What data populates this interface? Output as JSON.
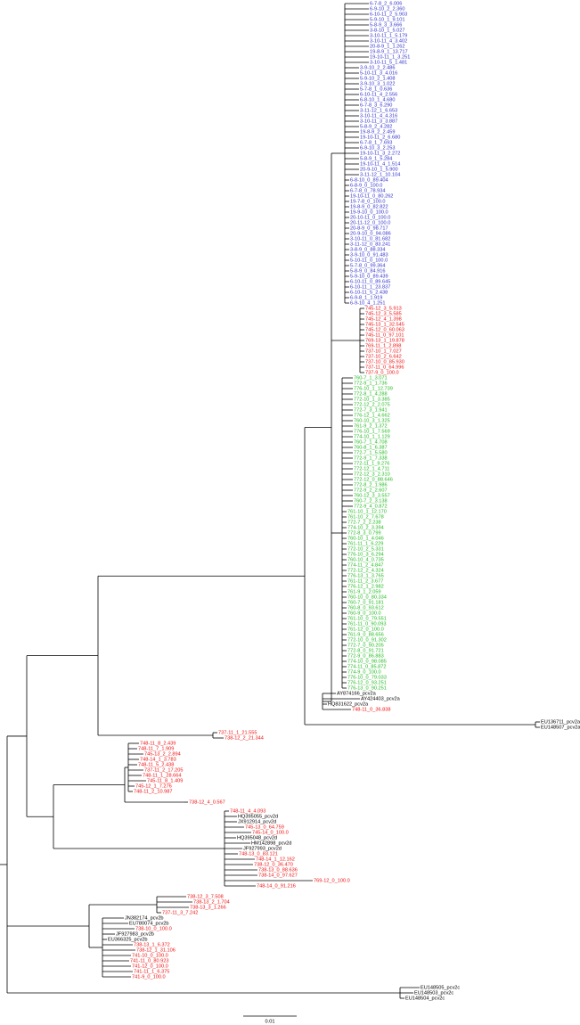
{
  "clades": [
    {
      "color": "#3333cc",
      "leaves": [
        "6-7-8_2_6.006",
        "6-9-10_2_2.360",
        "6-10-11_2_5.903",
        "5-9-10_1_9.101",
        "5-8-9_3_3.666",
        "3-8-10_1_5.027",
        "3-10-11_1_5.179",
        "3-10-11_4_3.402",
        "20-8-9_1_1.262",
        "19-8-9_1_13.717",
        "19-10-11_1_3.251",
        "3-10-11_5_1.481",
        "3-9-10_2_2.486",
        "5-10-11_3_4.016",
        "5-9-10_2_1.408",
        "3-9-10_3_1.022",
        "5-7-8_1_0.636",
        "6-10-11_4_2.556",
        "6-8-10_1_4.680",
        "6-7-8_3_6.290",
        "3-11-12_1_6.653",
        "3-10-11_4_4.316",
        "3-10-11_3_3.887",
        "5-8-9_2_4.282",
        "19-8-9_2_2.459",
        "19-10-11_2_6.680",
        "6-7-8_1_7.693",
        "6-9-10_3_2.253",
        "19-10-11_3_2.272",
        "5-8-9_1_5.284",
        "19-10-11_4_1.514",
        "20-9-10_1_5.900",
        "3-11-12_1_10.104",
        "6-8-10_0_89.404",
        "6-8-9_0_100.0",
        "6-7-8_0_78.934",
        "19-10-11_0_80.262",
        "19-7-8_0_100.0",
        "19-8-9_0_82.822",
        "19-9-10_0_100.0",
        "20-10-11_0_100.0",
        "20-11-12_0_100.0",
        "20-8-9_0_98.717",
        "20-9-10_0_94.086",
        "3-10-11_0_81.682",
        "3-11-12_0_83.241",
        "3-8-9_0_88.334",
        "3-9-10_0_91.483",
        "5-10-11_0_100.0",
        "5-7-8_0_99.364",
        "5-8-9_0_84.916",
        "5-9-10_0_89.439",
        "6-10-11_0_89.645",
        "6-10-11_1_23.837",
        "6-10-11_5_2.438",
        "6-9-8_1_1.919",
        "6-9-10_4_1.251"
      ]
    },
    {
      "color": "#ee1111",
      "leaves": [
        "745-12_3_5.913",
        "745-12_3_5.585",
        "745-12_4_1.398",
        "745-13_1_32.545",
        "745-12_0_60.063",
        "745-11_0_97.101",
        "769-13_1_19.878",
        "769-11_1_2.898",
        "737-10_1_7.027",
        "737-10_2_6.642",
        "737-10_0_85.930",
        "737-11_0_64.996",
        "737-9_0_100.0"
      ]
    },
    {
      "color": "#22bb22",
      "leaves": [
        "760-7_1_3.071",
        "772-9_1_1.736",
        "776-10_1_12.739",
        "772-8_1_4.288",
        "772-10_1_3.385",
        "772-12_2_2.075",
        "772-7_3_1.941",
        "776-12_1_4.662",
        "760-10_3_1.325",
        "761-9_2_1.372",
        "776-10_1_7.569",
        "774-10_1_1.129",
        "760-7_1_4.708",
        "760-8_1_6.387",
        "772-7_1_5.580",
        "772-9_1_7.338",
        "772-11_1_9.276",
        "772-12_1_4.711",
        "772-12_3_2.310",
        "772-12_0_88.646",
        "772-8_2_1.986",
        "772-9_2_2.607",
        "760-12_3_3.557",
        "760-7_2_3.138",
        "772-9_4_0.872",
        "761-10_1_12.170",
        "761-10_2_7.678",
        "772-7_2_2.238",
        "774-10_2_3.394",
        "772-8_3_0.799",
        "760-10_1_4.046",
        "761-11_1_6.229",
        "772-10_2_5.331",
        "776-10_3_6.294",
        "760-10_4_0.735",
        "774-11_2_4.847",
        "772-12_2_4.324",
        "776-13_1_3.765",
        "761-11_2_3.677",
        "776-12_1_2.982",
        "761-9_1_2.059",
        "760-10_0_80.334",
        "760-7_0_91.181",
        "760-8_0_93.612",
        "760-9_0_100.0",
        "761-10_0_79.551",
        "761-11_0_90.093",
        "761-12_0_100.0",
        "761-9_0_88.656",
        "772-10_0_91.302",
        "772-7_0_90.205",
        "772-8_0_91.721",
        "772-9_0_86.883",
        "774-10_0_98.085",
        "774-11_0_85.872",
        "774-9_0_100.0",
        "776-10_0_79.033",
        "776-12_0_93.251",
        "776-13_0_90.251"
      ]
    },
    {
      "color": "#000000",
      "leaves": [
        "AY874166_pcv2a",
        "AY424403_pcv2a",
        "HQ831622_pcv2a"
      ]
    },
    {
      "color": "#ee1111",
      "leaves": [
        "748-11_0_36.838"
      ]
    },
    {
      "color": "#000000",
      "leaves": [
        "EU136711_pcv2a",
        "EU148507_pcv2a"
      ]
    },
    {
      "color": "#ee1111",
      "leaves": [
        "737-11_1_21.555",
        "738-12_2_21.344",
        "748-11_8_2.439",
        "748-11_7_1.909",
        "745-13_2_2.894",
        "748-14_1_3.783",
        "748-11_5_2.438",
        "737-11_2_17.205",
        "748-11_1_28.664",
        "745-11_8_1.409",
        "745-12_1_7.276",
        "748-11_2_10.987",
        "738-12_4_0.567",
        "748-11_4_4.093"
      ]
    },
    {
      "color": "#000000",
      "leaves": [
        "HQ395055_pcv2d",
        "JX912914_pcv2d"
      ]
    },
    {
      "color": "#ee1111",
      "leaves": [
        "745-13_0_64.759",
        "745-14_0_100.0"
      ]
    },
    {
      "color": "#000000",
      "leaves": [
        "HQ395048_pcv2d",
        "HM142898_pcv2d",
        "JF927993_pcv2d"
      ]
    },
    {
      "color": "#ee1111",
      "leaves": [
        "748-13_0_83.121",
        "748-14_1_12.162",
        "738-12_0_36.470",
        "738-13_0_88.636",
        "738-14_0_97.627",
        "769-12_0_100.0",
        "748-14_0_91.216",
        "738-12_3_7.508",
        "738-13_2_1.704",
        "738-13_3_1.266",
        "737-11_3_7.242"
      ]
    },
    {
      "color": "#000000",
      "leaves": [
        "JN382174_pcv2b",
        "EU780074_pcv2b"
      ]
    },
    {
      "color": "#ee1111",
      "leaves": [
        "738-10_0_100.0"
      ]
    },
    {
      "color": "#000000",
      "leaves": [
        "JF927983_pcv2b",
        "EU366325_pcv2b"
      ]
    },
    {
      "color": "#ee1111",
      "leaves": [
        "738-13_1_6.372",
        "738-12_1_31.106",
        "741-10_0_100.0",
        "741-11_0_80.923",
        "741-12_0_100.0",
        "741-11_1_6.375",
        "741-9_0_100.0"
      ]
    },
    {
      "color": "#000000",
      "leaves": [
        "EU148505_pcv2c",
        "EU148503_pcv2c",
        "EU148504_pcv2c"
      ]
    }
  ],
  "scale_label": "0.01"
}
